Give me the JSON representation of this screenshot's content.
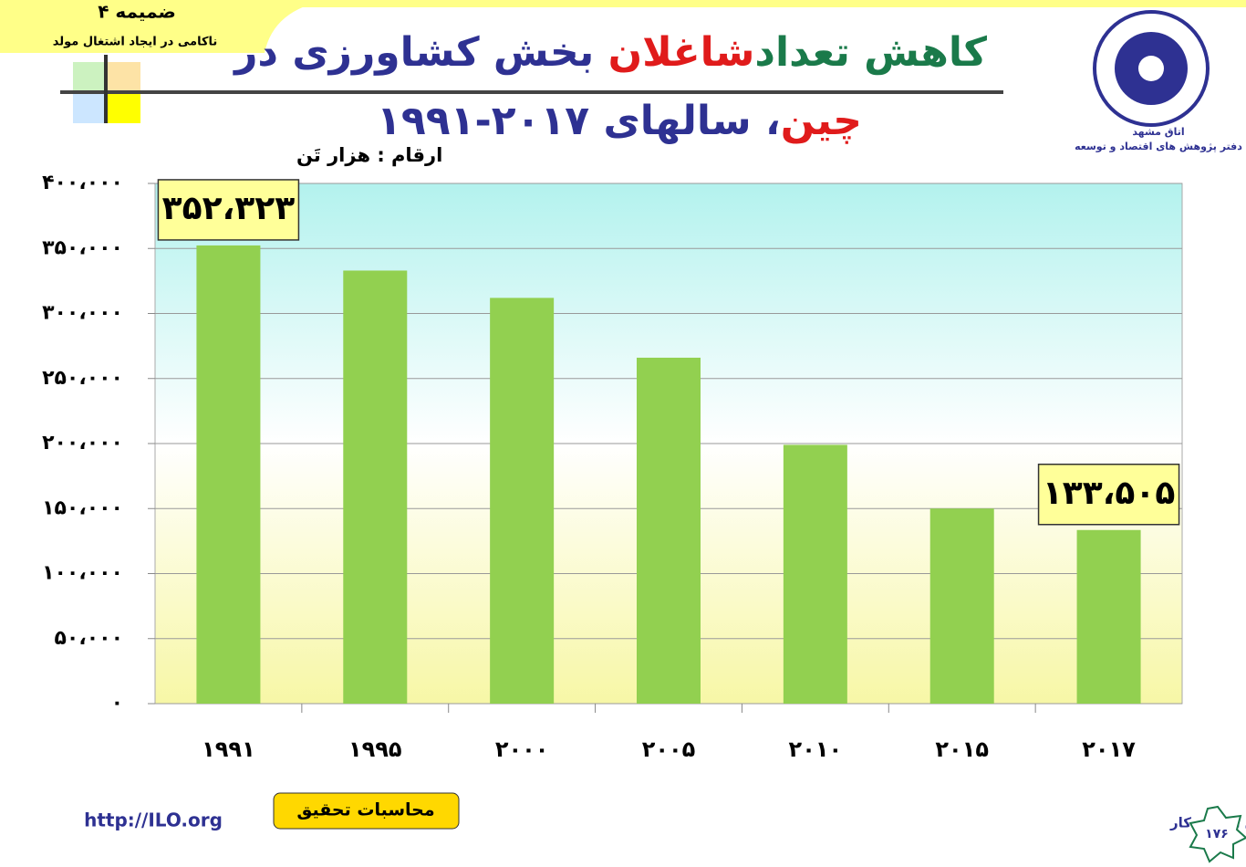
{
  "slide": {
    "appendix": "ضمیمه ۴",
    "appendix_subtitle": "ناکامی در ایجاد اشتغال مولد",
    "title_line1": [
      "کاهش تعداد",
      "شاغلان",
      " بخش کشاورزی در"
    ],
    "title_line2": [
      "چین",
      "، سالهای ۲۰۱۷-۱۹۹۱"
    ],
    "logo_caption": [
      "اتاق مشهد",
      "دفتر پژوهش های اقتصاد و توسعه"
    ],
    "url": "http://ILO.org",
    "note_button": "محاسبات تحقیق",
    "source": "مأخذ: سازمان بین المللی کار",
    "page_number": "۱۷۶"
  },
  "chart_data": {
    "type": "bar",
    "unit_label": "ارقام : هزار تَن",
    "categories": [
      "۱۹۹۱",
      "۱۹۹۵",
      "۲۰۰۰",
      "۲۰۰۵",
      "۲۰۱۰",
      "۲۰۱۵",
      "۲۰۱۷"
    ],
    "values": [
      352323,
      333000,
      312000,
      266000,
      199000,
      150000,
      133505
    ],
    "value_labels": [
      "۳۵۲،۳۲۳",
      null,
      null,
      null,
      null,
      null,
      "۱۳۳،۵۰۵"
    ],
    "color": "#92d050",
    "ylim": [
      0,
      400000
    ],
    "yticks": [
      {
        "value": 0,
        "label": "۰"
      },
      {
        "value": 50000,
        "label": "۵۰،۰۰۰"
      },
      {
        "value": 100000,
        "label": "۱۰۰،۰۰۰"
      },
      {
        "value": 150000,
        "label": "۱۵۰،۰۰۰"
      },
      {
        "value": 200000,
        "label": "۲۰۰،۰۰۰"
      },
      {
        "value": 250000,
        "label": "۲۵۰،۰۰۰"
      },
      {
        "value": 300000,
        "label": "۳۰۰،۰۰۰"
      },
      {
        "value": 350000,
        "label": "۳۵۰،۰۰۰"
      },
      {
        "value": 400000,
        "label": "۴۰۰،۰۰۰"
      }
    ],
    "grid": true
  }
}
